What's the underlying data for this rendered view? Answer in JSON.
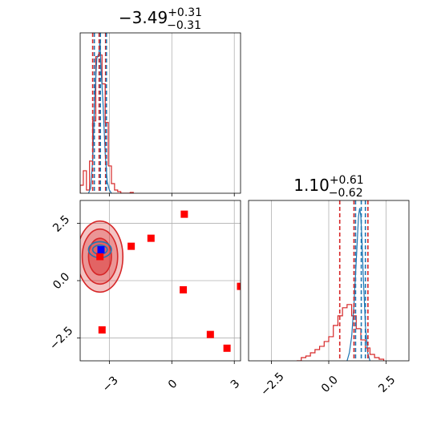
{
  "chart_data": [
    {
      "panel": "top-left",
      "type": "histogram",
      "title": {
        "base": "−3.49",
        "sup": "+0.31",
        "sub": "−0.31"
      },
      "xlim": [
        -4.4,
        3.3
      ],
      "grid": true,
      "xticks": [
        -3,
        0,
        3
      ],
      "xtick_labels_shown": false,
      "series": [
        {
          "color": "#d62728",
          "style": "step",
          "bin_width": 0.15,
          "x_start": -4.4,
          "values": [
            0.05,
            0.14,
            0.02,
            0.2,
            0.45,
            0.85,
            0.86,
            0.68,
            0.44,
            0.17,
            0.06,
            0.02,
            0.01,
            0.0,
            0.0,
            0.0,
            0.005
          ]
        },
        {
          "color": "#1f77b4",
          "style": "line",
          "x": [
            -4.0,
            -3.9,
            -3.8,
            -3.7,
            -3.6,
            -3.5,
            -3.45,
            -3.4,
            -3.3,
            -3.2,
            -3.1,
            -3.0,
            -2.9
          ],
          "y": [
            0.0,
            0.03,
            0.2,
            0.6,
            0.84,
            0.87,
            0.95,
            0.78,
            0.55,
            0.25,
            0.07,
            0.02,
            0.0
          ]
        }
      ],
      "vlines": [
        {
          "x": -3.8,
          "color": "#d62728",
          "style": "dashed"
        },
        {
          "x": -3.72,
          "color": "#1f77b4",
          "style": "dashed"
        },
        {
          "x": -3.49,
          "color": "#d62728",
          "style": "dashed"
        },
        {
          "x": -3.43,
          "color": "#1f77b4",
          "style": "dashed"
        },
        {
          "x": -3.18,
          "color": "#d62728",
          "style": "dashed"
        },
        {
          "x": -3.14,
          "color": "#1f77b4",
          "style": "dashed"
        }
      ]
    },
    {
      "panel": "bottom-left",
      "type": "scatter",
      "xlim": [
        -4.4,
        3.3
      ],
      "ylim": [
        -3.5,
        3.5
      ],
      "grid": true,
      "xticks": [
        -3,
        0,
        3
      ],
      "xtick_labels": [
        "−3",
        "0",
        "3"
      ],
      "yticks": [
        -2.5,
        0.0,
        2.5
      ],
      "ytick_labels": [
        "−2.5",
        "0.0",
        "2.5"
      ],
      "contours": [
        {
          "color": "#d62728",
          "fill": "#d62728",
          "cx": -3.45,
          "cy": 1.05,
          "rx": [
            1.1,
            0.85,
            0.55
          ],
          "ry": [
            1.55,
            1.2,
            0.8
          ],
          "fill_opacity": [
            0.55,
            0.6,
            0.9
          ]
        },
        {
          "color": "#1f77b4",
          "cx": -3.45,
          "cy": 1.35,
          "rx": [
            0.55,
            0.35
          ],
          "ry": [
            0.35,
            0.2
          ]
        }
      ],
      "points": [
        {
          "x": 0.6,
          "y": 2.9,
          "color": "#ff0000",
          "marker": "square"
        },
        {
          "x": -1.0,
          "y": 1.85,
          "color": "#ff0000",
          "marker": "square"
        },
        {
          "x": -1.95,
          "y": 1.5,
          "color": "#ff0000",
          "marker": "square"
        },
        {
          "x": -3.45,
          "y": 1.05,
          "color": "#ff0000",
          "marker": "square"
        },
        {
          "x": 0.55,
          "y": -0.4,
          "color": "#ff0000",
          "marker": "square"
        },
        {
          "x": 3.3,
          "y": -0.25,
          "color": "#ff0000",
          "marker": "square"
        },
        {
          "x": -3.35,
          "y": -2.15,
          "color": "#ff0000",
          "marker": "square"
        },
        {
          "x": 1.85,
          "y": -2.35,
          "color": "#ff0000",
          "marker": "square"
        },
        {
          "x": 2.65,
          "y": -2.95,
          "color": "#ff0000",
          "marker": "square"
        },
        {
          "x": -3.4,
          "y": 1.35,
          "color": "#0000ff",
          "marker": "square"
        }
      ]
    },
    {
      "panel": "bottom-right",
      "type": "histogram",
      "title": {
        "base": "1.10",
        "sup": "+0.61",
        "sub": "−0.62"
      },
      "xlim": [
        -3.5,
        3.5
      ],
      "grid": true,
      "xticks": [
        -2.5,
        0.0,
        2.5
      ],
      "xtick_labels": [
        "−2.5",
        "0.0",
        "2.5"
      ],
      "series": [
        {
          "color": "#d62728",
          "style": "step",
          "bin_width": 0.2,
          "x_start": -1.4,
          "values": [
            0.0,
            0.02,
            0.03,
            0.05,
            0.07,
            0.09,
            0.12,
            0.15,
            0.22,
            0.28,
            0.33,
            0.35,
            0.28,
            0.2,
            0.13,
            0.08,
            0.04,
            0.02,
            0.01
          ]
        },
        {
          "color": "#1f77b4",
          "style": "line",
          "x": [
            0.8,
            0.9,
            1.0,
            1.1,
            1.2,
            1.3,
            1.35,
            1.4,
            1.45,
            1.5,
            1.6,
            1.7,
            1.8
          ],
          "y": [
            0.0,
            0.05,
            0.15,
            0.35,
            0.62,
            0.9,
            0.95,
            0.9,
            0.75,
            0.55,
            0.22,
            0.05,
            0.0
          ]
        }
      ],
      "vlines": [
        {
          "x": 0.48,
          "color": "#d62728",
          "style": "dashed"
        },
        {
          "x": 1.1,
          "color": "#d62728",
          "style": "dashed"
        },
        {
          "x": 1.71,
          "color": "#d62728",
          "style": "dashed"
        },
        {
          "x": 1.17,
          "color": "#1f77b4",
          "style": "dashed"
        },
        {
          "x": 1.42,
          "color": "#1f77b4",
          "style": "dashed"
        },
        {
          "x": 1.6,
          "color": "#1f77b4",
          "style": "dashed"
        }
      ]
    }
  ]
}
